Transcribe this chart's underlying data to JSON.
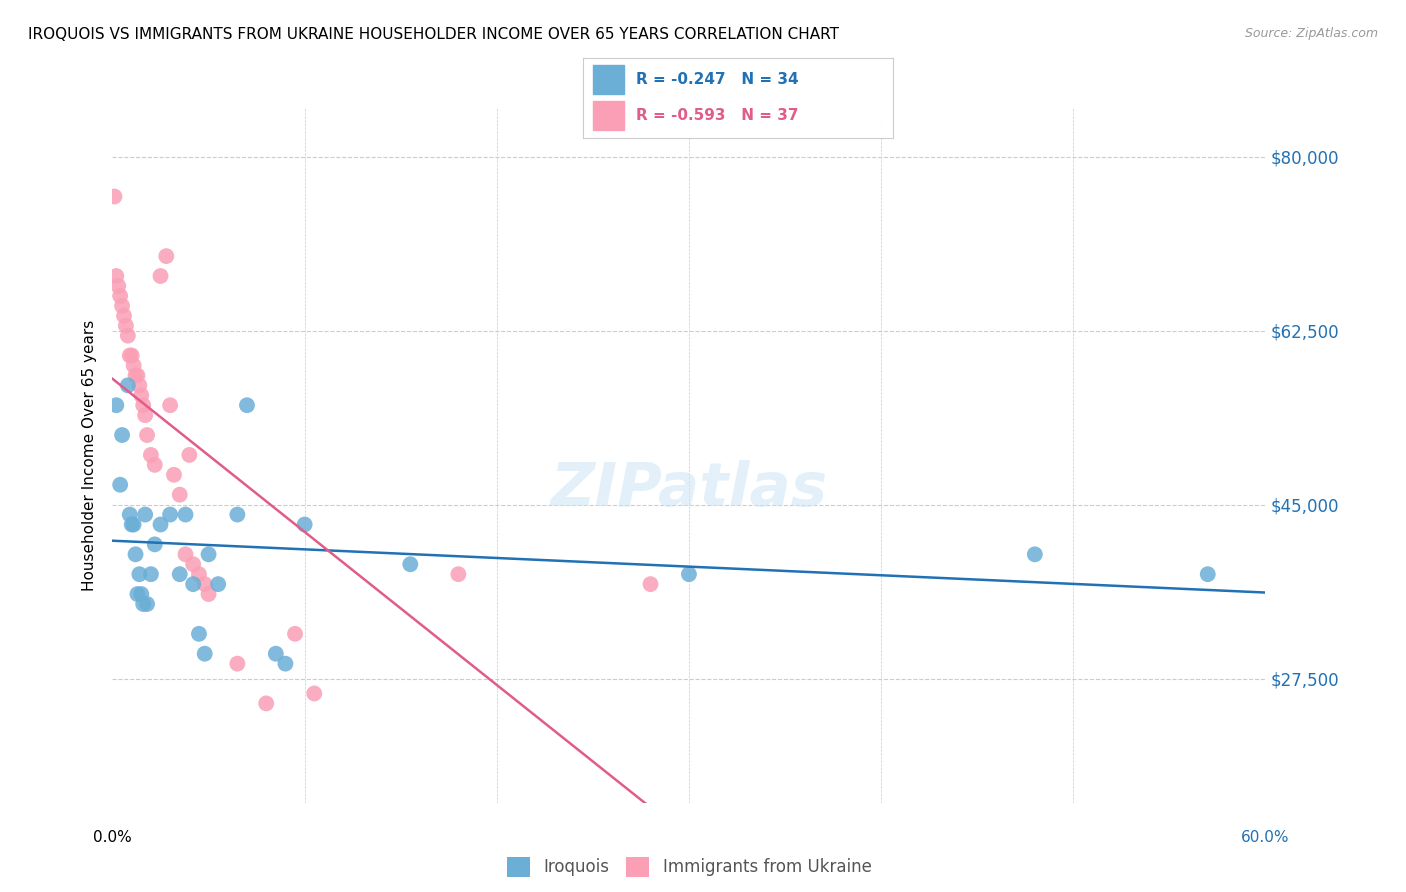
{
  "title": "IROQUOIS VS IMMIGRANTS FROM UKRAINE HOUSEHOLDER INCOME OVER 65 YEARS CORRELATION CHART",
  "source": "Source: ZipAtlas.com",
  "ylabel": "Householder Income Over 65 years",
  "xmin": 0.0,
  "xmax": 0.6,
  "ymin": 15000,
  "ymax": 85000,
  "r_iroquois": "-0.247",
  "n_iroquois": "34",
  "r_ukraine": "-0.593",
  "n_ukraine": "37",
  "blue_color": "#6baed6",
  "pink_color": "#fa9fb5",
  "blue_line_color": "#2171b5",
  "pink_line_color": "#e05c8a",
  "ytick_vals": [
    27500,
    45000,
    62500,
    80000
  ],
  "ytick_labels": [
    "$27,500",
    "$45,000",
    "$62,500",
    "$80,000"
  ],
  "iroquois_x": [
    0.002,
    0.004,
    0.005,
    0.008,
    0.009,
    0.01,
    0.011,
    0.012,
    0.013,
    0.014,
    0.015,
    0.016,
    0.017,
    0.018,
    0.02,
    0.022,
    0.025,
    0.03,
    0.035,
    0.038,
    0.042,
    0.045,
    0.048,
    0.05,
    0.055,
    0.065,
    0.07,
    0.085,
    0.09,
    0.1,
    0.155,
    0.3,
    0.48,
    0.57
  ],
  "iroquois_y": [
    55000,
    47000,
    52000,
    57000,
    44000,
    43000,
    43000,
    40000,
    36000,
    38000,
    36000,
    35000,
    44000,
    35000,
    38000,
    41000,
    43000,
    44000,
    38000,
    44000,
    37000,
    32000,
    30000,
    40000,
    37000,
    44000,
    55000,
    30000,
    29000,
    43000,
    39000,
    38000,
    40000,
    38000
  ],
  "ukraine_x": [
    0.001,
    0.002,
    0.003,
    0.004,
    0.005,
    0.006,
    0.007,
    0.008,
    0.009,
    0.01,
    0.011,
    0.012,
    0.013,
    0.014,
    0.015,
    0.016,
    0.017,
    0.018,
    0.02,
    0.022,
    0.025,
    0.028,
    0.03,
    0.032,
    0.035,
    0.038,
    0.04,
    0.042,
    0.045,
    0.048,
    0.05,
    0.065,
    0.08,
    0.095,
    0.105,
    0.18,
    0.28
  ],
  "ukraine_y": [
    76000,
    68000,
    67000,
    66000,
    65000,
    64000,
    63000,
    62000,
    60000,
    60000,
    59000,
    58000,
    58000,
    57000,
    56000,
    55000,
    54000,
    52000,
    50000,
    49000,
    68000,
    70000,
    55000,
    48000,
    46000,
    40000,
    50000,
    39000,
    38000,
    37000,
    36000,
    29000,
    25000,
    32000,
    26000,
    38000,
    37000
  ]
}
